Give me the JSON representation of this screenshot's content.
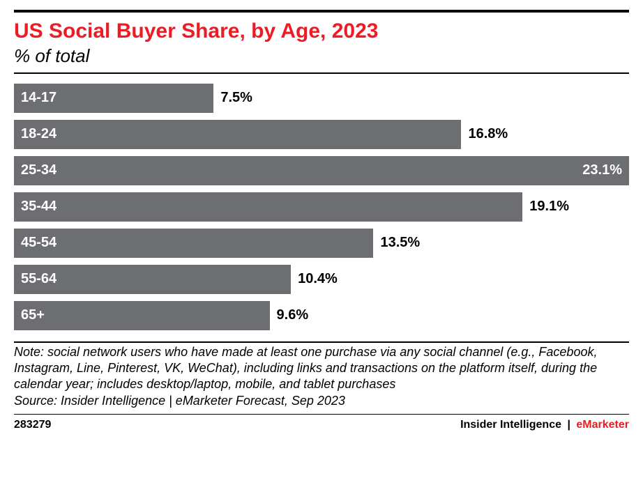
{
  "chart": {
    "type": "bar-horizontal",
    "title": "US Social Buyer Share, by Age, 2023",
    "title_color": "#ed1c24",
    "subtitle": "% of total",
    "subtitle_color": "#000000",
    "background_color": "#ffffff",
    "rule_color": "#000000",
    "bar_color": "#6d6e71",
    "bar_label_color": "#ffffff",
    "value_color": "#000000",
    "title_fontsize": 30,
    "subtitle_fontsize": 26,
    "label_fontsize": 20,
    "value_fontsize": 20,
    "max_value": 23.1,
    "full_width_pct": 100,
    "bars": [
      {
        "label": "14-17",
        "value": 7.5,
        "display": "7.5%",
        "value_inside": false
      },
      {
        "label": "18-24",
        "value": 16.8,
        "display": "16.8%",
        "value_inside": false
      },
      {
        "label": "25-34",
        "value": 23.1,
        "display": "23.1%",
        "value_inside": true
      },
      {
        "label": "35-44",
        "value": 19.1,
        "display": "19.1%",
        "value_inside": false
      },
      {
        "label": "45-54",
        "value": 13.5,
        "display": "13.5%",
        "value_inside": false
      },
      {
        "label": "55-64",
        "value": 10.4,
        "display": "10.4%",
        "value_inside": false
      },
      {
        "label": "65+",
        "value": 9.6,
        "display": "9.6%",
        "value_inside": false
      }
    ]
  },
  "note": "Note: social network users who have made at least one purchase via any social channel (e.g., Facebook, Instagram, Line, Pinterest, VK, WeChat), including links and transactions on the platform itself, during the calendar year; includes desktop/laptop, mobile, and tablet purchases",
  "source": "Source: Insider Intelligence | eMarketer Forecast, Sep 2023",
  "footer": {
    "id": "283279",
    "brand_left": "Insider Intelligence",
    "brand_right": "eMarketer",
    "brand_right_color": "#ed1c24"
  }
}
